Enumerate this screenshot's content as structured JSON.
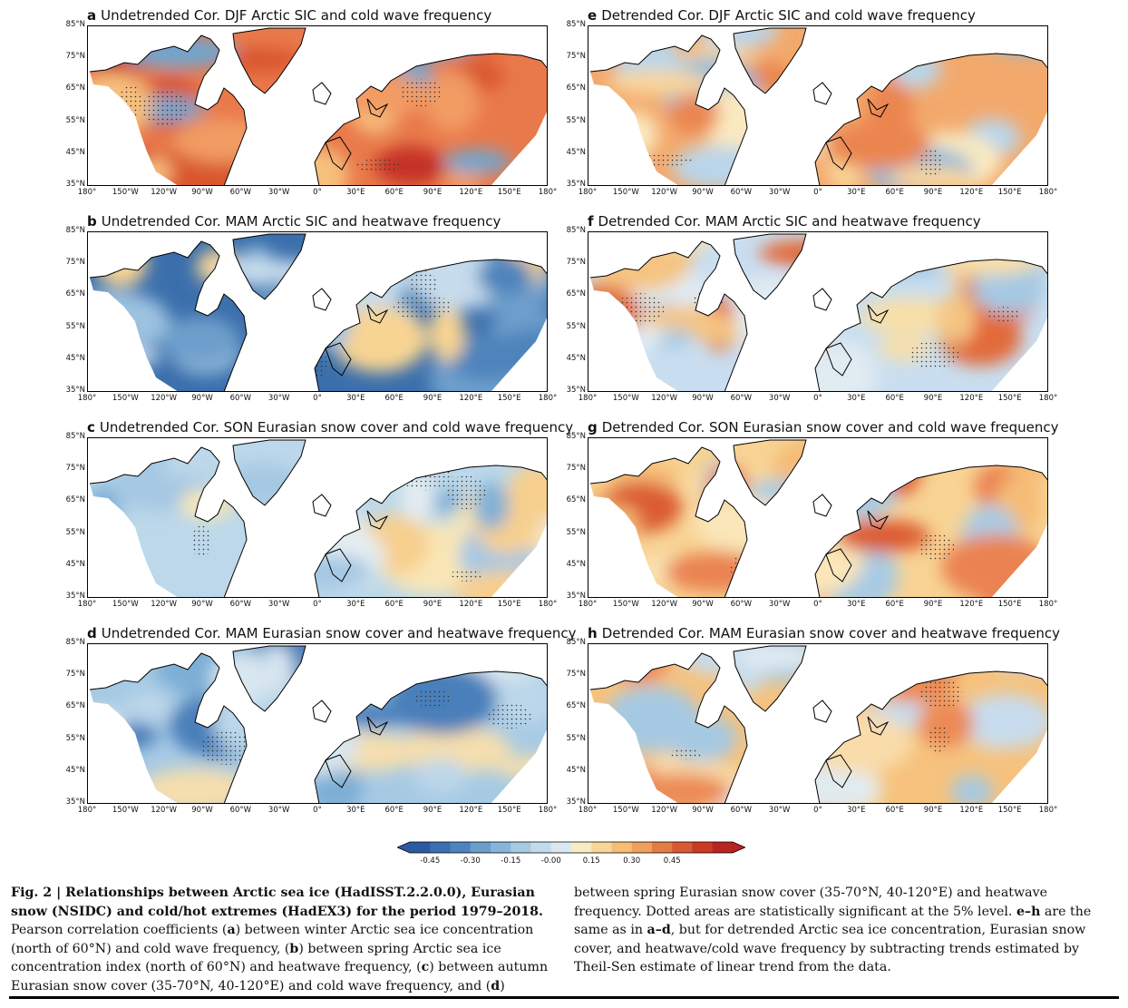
{
  "panels": [
    {
      "letter": "a",
      "title": "Undetrended Cor. DJF Arctic SIC and cold wave frequency",
      "palette": [
        "#e9794a",
        "#f29b63",
        "#d9572f",
        "#6fa6cf",
        "#f6c07d",
        "#c43225"
      ]
    },
    {
      "letter": "b",
      "title": "Undetrended Cor. MAM Arctic SIC and heatwave frequency",
      "palette": [
        "#3b6fac",
        "#4d84bc",
        "#6e9fcc",
        "#9cc2e0",
        "#f8d492",
        "#c6dcec"
      ]
    },
    {
      "letter": "c",
      "title": "Undetrended Cor. SON Eurasian snow cover and cold wave frequency",
      "palette": [
        "#bcd8ea",
        "#a5c8e3",
        "#f9e6b6",
        "#f7cf8e",
        "#7fb0d6",
        "#e4edf1"
      ]
    },
    {
      "letter": "d",
      "title": "Undetrended Cor. MAM Eurasian snow cover and heatwave frequency",
      "palette": [
        "#a7cae4",
        "#bcd7ea",
        "#7daed5",
        "#4a7fba",
        "#f5deae",
        "#d8e6ef"
      ]
    },
    {
      "letter": "e",
      "title": "Detrended Cor. DJF Arctic SIC and cold wave frequency",
      "palette": [
        "#f3a96c",
        "#f9d59a",
        "#b9d6ea",
        "#eb8550",
        "#8fbadc",
        "#fae9c0"
      ]
    },
    {
      "letter": "f",
      "title": "Detrended Cor. MAM Arctic SIC and heatwave frequency",
      "palette": [
        "#c9def0",
        "#e0ebf2",
        "#f5c483",
        "#e26a3a",
        "#a5c9e3",
        "#f8dfa8"
      ]
    },
    {
      "letter": "g",
      "title": "Detrended Cor. SON Eurasian snow cover and cold wave frequency",
      "palette": [
        "#f8d394",
        "#f5bc76",
        "#ea8351",
        "#fae6b8",
        "#a8cbe4",
        "#dc5c33"
      ]
    },
    {
      "letter": "h",
      "title": "Detrended Cor. MAM Eurasian snow cover and heatwave frequency",
      "palette": [
        "#f6c27d",
        "#f9dcaa",
        "#c7dcee",
        "#ec8a55",
        "#a6c9e3",
        "#e0ebf1"
      ]
    }
  ],
  "lat_labels": [
    "85°N",
    "75°N",
    "65°N",
    "55°N",
    "45°N",
    "35°N"
  ],
  "lon_labels": [
    "180°",
    "150°W",
    "120°W",
    "90°W",
    "60°W",
    "30°W",
    "0°",
    "30°E",
    "60°E",
    "90°E",
    "120°E",
    "150°E",
    "180°"
  ],
  "colorbar": {
    "ticks": [
      "-0.45",
      "-0.30",
      "-0.15",
      "-0.00",
      "0.15",
      "0.30",
      "0.45"
    ],
    "colors": [
      "#2c5aa0",
      "#3b6fb2",
      "#4d84c0",
      "#6a9dcc",
      "#87b4d9",
      "#a6c9e4",
      "#c2dbec",
      "#dae8f0",
      "#f9ebc2",
      "#f8d699",
      "#f6bd76",
      "#f0a05b",
      "#e47c45",
      "#d85a34",
      "#c93a27",
      "#b92320"
    ]
  },
  "caption": {
    "fig_label": "Fig. 2 | Relationships between Arctic sea ice (HadISST.2.2.0.0), Eurasian snow (NSIDC) and cold/hot extremes (HadEX3) for the period 1979–2018.",
    "p1": " Pearson correlation coefficients (",
    "a": "a",
    "p2": ") between winter Arctic sea ice concentration (north of 60°N) and cold wave frequency, (",
    "b": "b",
    "p3": ") between spring Arctic sea ice concentration index (north of 60°N) and heatwave frequency, (",
    "c": "c",
    "p4": ") between autumn Eurasian snow cover (35-70°N, 40-120°E) and cold wave frequency, and (",
    "d": "d",
    "p5": ") between spring Eurasian snow cover (35-70°N, 40-120°E) and heatwave frequency. Dotted areas are statistically significant at the 5% level. ",
    "eh": "e–h",
    "p6": " are the same as in ",
    "ad": "a–d",
    "p7": ", but for detrended Arctic sea ice concentration, Eurasian snow cover, and heatwave/cold wave frequency by subtracting trends estimated by Theil-Sen estimate of linear trend from the data."
  }
}
